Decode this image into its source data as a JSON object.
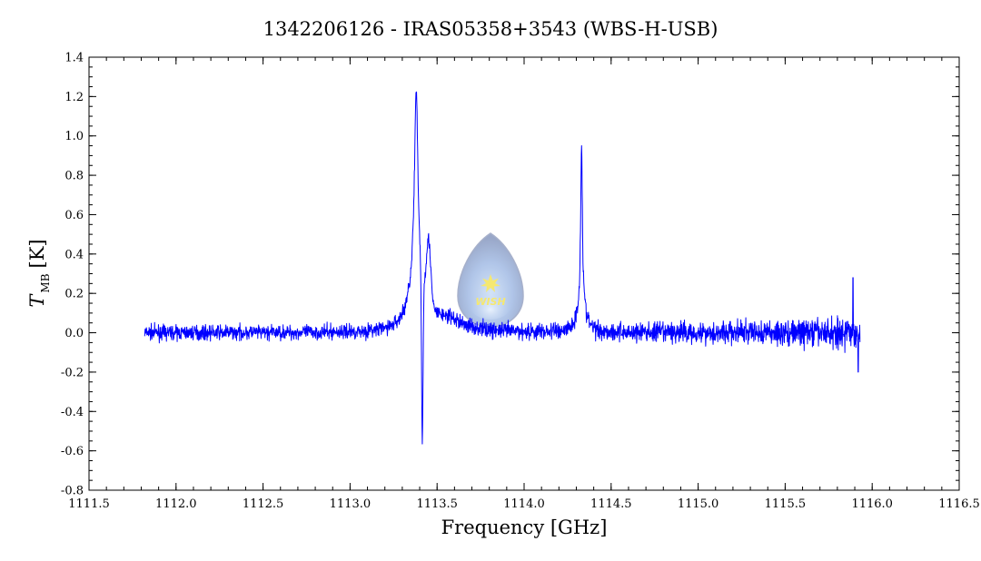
{
  "chart_data": {
    "type": "line",
    "title": "1342206126 - IRAS05358+3543 (WBS-H-USB)",
    "xlabel": "Frequency [GHz]",
    "ylabel": {
      "symbol": "T",
      "subscript": "MB",
      "unit": "[K]"
    },
    "xlim": [
      1111.5,
      1116.5
    ],
    "ylim": [
      -0.8,
      1.4
    ],
    "x_ticks": [
      1111.5,
      1112.0,
      1112.5,
      1113.0,
      1113.5,
      1114.0,
      1114.5,
      1115.0,
      1115.5,
      1116.0,
      1116.5
    ],
    "x_tick_labels": [
      "1111.5",
      "1112.0",
      "1112.5",
      "1113.0",
      "1113.5",
      "1114.0",
      "1114.5",
      "1115.0",
      "1115.5",
      "1116.0",
      "1116.5"
    ],
    "y_ticks": [
      -0.8,
      -0.6,
      -0.4,
      -0.2,
      0.0,
      0.2,
      0.4,
      0.6,
      0.8,
      1.0,
      1.2,
      1.4
    ],
    "y_tick_labels": [
      "-0.8",
      "-0.6",
      "-0.4",
      "-0.2",
      "0.0",
      "0.2",
      "0.4",
      "0.6",
      "0.8",
      "1.0",
      "1.2",
      "1.4"
    ],
    "grid": false,
    "series": [
      {
        "color": "#0000ff",
        "x_range": [
          1111.82,
          1115.93
        ],
        "baseline": 0.0,
        "noise_rms_start": 0.025,
        "noise_rms_end": 0.055,
        "features": [
          {
            "x": 1113.38,
            "peak": 1.22,
            "type": "emission"
          },
          {
            "x": 1113.415,
            "peak": -0.62,
            "type": "absorption"
          },
          {
            "x": 1113.45,
            "peak": 0.42,
            "type": "emission"
          },
          {
            "x": 1114.33,
            "peak": 0.96,
            "type": "emission"
          },
          {
            "x": 1115.89,
            "peak": 0.28,
            "type": "spike"
          },
          {
            "x": 1115.92,
            "peak": -0.2,
            "type": "spike"
          }
        ]
      }
    ]
  },
  "logo": {
    "text": "WISH",
    "icon": "star-icon"
  }
}
